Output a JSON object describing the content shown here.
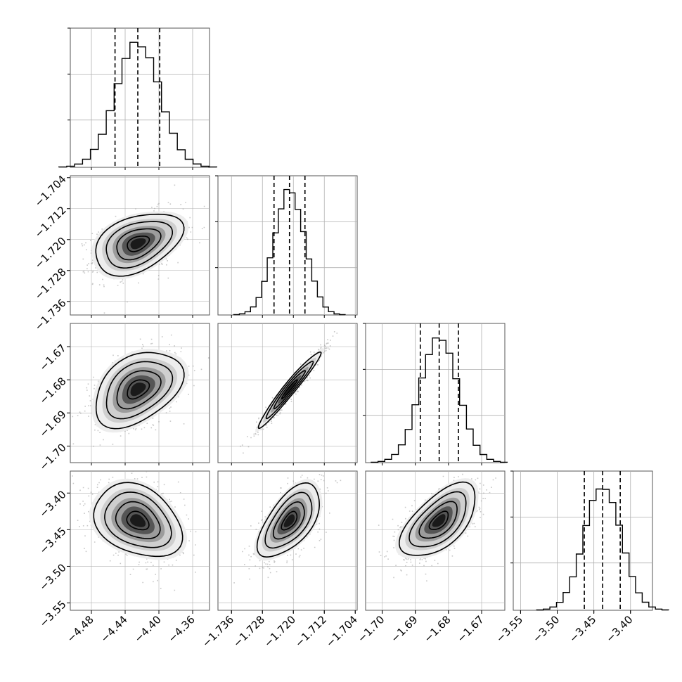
{
  "chart_data": {
    "type": "corner",
    "parameters": 4,
    "colors": {
      "ink": "#000000",
      "grid": "#b0b0b0",
      "frame": "#555555",
      "scatter": "#9a9a9a"
    },
    "grid": true,
    "quantile_lines": "dashed",
    "axes": [
      {
        "range": [
          -4.505,
          -4.34
        ],
        "ticks": [
          -4.48,
          -4.44,
          -4.4,
          -4.36
        ],
        "tick_labels": [
          "−4.48",
          "−4.44",
          "−4.40",
          "−4.36"
        ],
        "quantiles": [
          -4.452,
          -4.425,
          -4.399
        ],
        "center": -4.425,
        "sigma": 0.026
      },
      {
        "range": [
          -1.7395,
          -1.7035
        ],
        "ticks": [
          -1.736,
          -1.728,
          -1.72,
          -1.712,
          -1.704
        ],
        "tick_labels": [
          "−1.736",
          "−1.728",
          "−1.720",
          "−1.712",
          "−1.704"
        ],
        "quantiles": [
          -1.725,
          -1.721,
          -1.717
        ],
        "center": -1.721,
        "sigma": 0.004
      },
      {
        "range": [
          -1.705,
          -1.663
        ],
        "ticks": [
          -1.7,
          -1.69,
          -1.68,
          -1.67
        ],
        "tick_labels": [
          "−1.70",
          "−1.69",
          "−1.68",
          "−1.67"
        ],
        "quantiles": [
          -1.6885,
          -1.6828,
          -1.677
        ],
        "center": -1.6828,
        "sigma": 0.0057
      },
      {
        "range": [
          -3.56,
          -3.37
        ],
        "ticks": [
          -3.55,
          -3.5,
          -3.45,
          -3.4
        ],
        "tick_labels": [
          "−3.55",
          "−3.50",
          "−3.45",
          "−3.40"
        ],
        "quantiles": [
          -3.463,
          -3.438,
          -3.414
        ],
        "center": -3.438,
        "sigma": 0.025
      }
    ],
    "correlations": [
      [
        1.0,
        0.4,
        0.4,
        -0.3
      ],
      [
        0.4,
        1.0,
        0.97,
        0.6
      ],
      [
        0.4,
        0.97,
        1.0,
        0.6
      ],
      [
        -0.3,
        0.6,
        0.6,
        1.0
      ]
    ],
    "histogram_bins": 20,
    "contour_levels_sigma": [
      0.5,
      1.0,
      1.5,
      2.0
    ]
  }
}
